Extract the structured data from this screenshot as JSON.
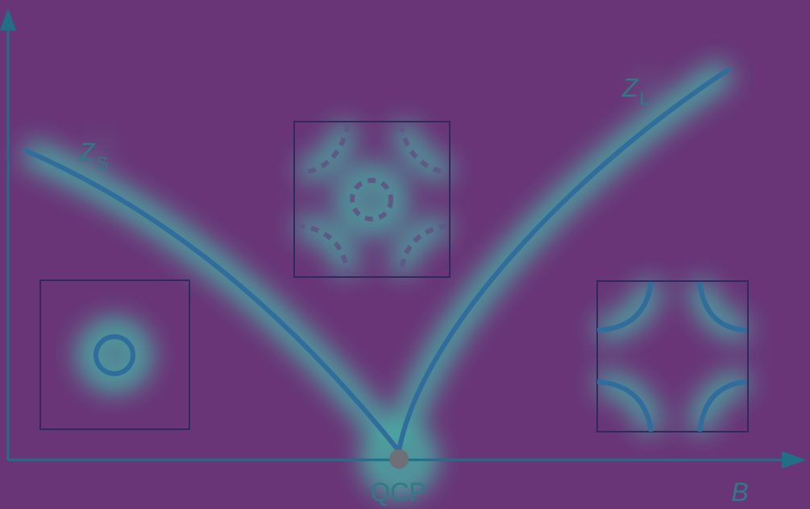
{
  "labels": {
    "zs_main": "Z",
    "zs_sub": "S",
    "zl_main": "Z",
    "zl_sub": "L",
    "qcp": "QCP",
    "b_axis": "B"
  },
  "colors": {
    "background": "#6a3577",
    "glow": "#3fcfb0",
    "curve": "#2f6e9c",
    "box_outline": "#2e2a5c",
    "axis": "#1f6f86",
    "qcp_dot": "#6f6f76",
    "label": "#2e7a86"
  },
  "icons": {
    "axis_arrow": "arrow-head-icon",
    "fermi_surfaces": "fermi-surface-icon"
  }
}
